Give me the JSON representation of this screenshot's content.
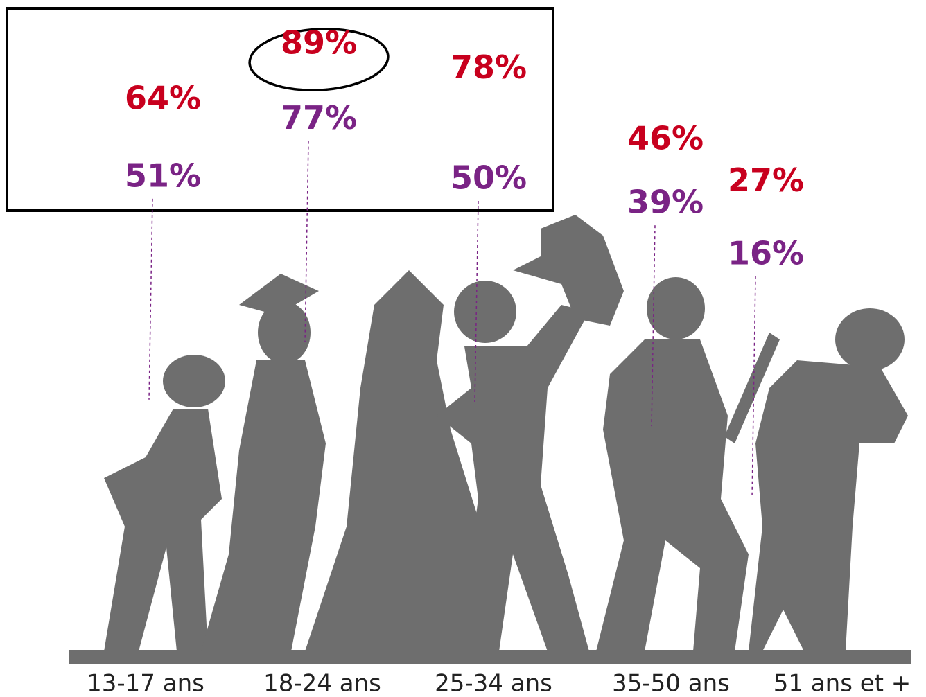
{
  "chart_data": {
    "type": "pictogram",
    "categories": [
      "13-17 ans",
      "18-24 ans",
      "25-34 ans",
      "35-50 ans",
      "51 ans et +"
    ],
    "series": [
      {
        "color": "#c8001e",
        "values": [
          64,
          89,
          78,
          46,
          27
        ],
        "value_labels": [
          "64%",
          "89%",
          "78%",
          "46%",
          "27%"
        ]
      },
      {
        "color": "#7a2385",
        "values": [
          51,
          77,
          50,
          39,
          16
        ],
        "value_labels": [
          "51%",
          "77%",
          "50%",
          "39%",
          "16%"
        ]
      }
    ]
  }
}
